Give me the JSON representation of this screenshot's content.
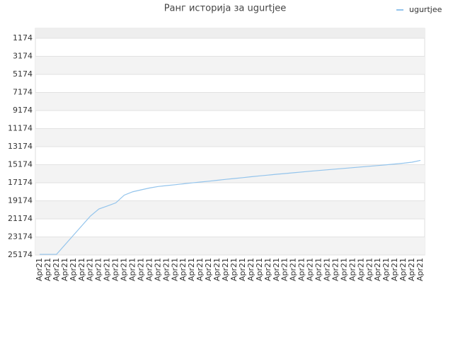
{
  "chart_data": {
    "type": "line",
    "title": "Ранг историја за ugurtjee",
    "categories": [
      "Apr21",
      "Apr21",
      "Apr21",
      "Apr21",
      "Apr21",
      "Apr21",
      "Apr21",
      "Apr21",
      "Apr21",
      "Apr21",
      "Apr21",
      "Apr21",
      "Apr21",
      "Apr21",
      "Apr21",
      "Apr21",
      "Apr21",
      "Apr21",
      "Apr21",
      "Apr21",
      "Apr21",
      "Apr21",
      "Apr21",
      "Apr21",
      "Apr21",
      "Apr21",
      "Apr21",
      "Apr21",
      "Apr21",
      "Apr21",
      "Apr21",
      "Apr21",
      "Apr21",
      "Apr21",
      "Apr21",
      "Apr21",
      "Apr21",
      "Apr21",
      "Apr21",
      "Apr21",
      "Apr21",
      "Apr21",
      "Apr21",
      "Apr21",
      "Apr21",
      "Apr21"
    ],
    "series": [
      {
        "name": "ugurtjee",
        "color": "#93c4ec",
        "values": [
          25100,
          25100,
          25100,
          24036,
          22977,
          21919,
          20860,
          20076,
          19746,
          19401,
          18546,
          18174,
          17958,
          17754,
          17590,
          17487,
          17393,
          17291,
          17190,
          17096,
          17001,
          16899,
          16797,
          16703,
          16609,
          16507,
          16413,
          16327,
          16233,
          16154,
          16068,
          15982,
          15896,
          15817,
          15739,
          15660,
          15582,
          15503,
          15425,
          15346,
          15268,
          15182,
          15096,
          15009,
          14900,
          14700
        ]
      }
    ],
    "ylim": [
      76,
      25174
    ],
    "y_inverted": true,
    "yticks": [
      1174,
      3174,
      5174,
      7174,
      9174,
      11174,
      13174,
      15174,
      17174,
      19174,
      21174,
      23174,
      25174
    ],
    "grid": true,
    "legend": "top-right"
  }
}
